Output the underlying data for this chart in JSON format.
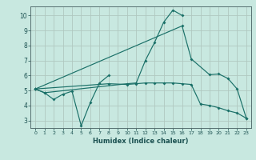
{
  "xlabel": "Humidex (Indice chaleur)",
  "bg_color": "#c8e8e0",
  "grid_color": "#b0c8c0",
  "line_color": "#1a7068",
  "xlim": [
    -0.5,
    23.5
  ],
  "ylim": [
    2.5,
    10.6
  ],
  "yticks": [
    3,
    4,
    5,
    6,
    7,
    8,
    9,
    10
  ],
  "xticks": [
    0,
    1,
    2,
    3,
    4,
    5,
    6,
    7,
    8,
    9,
    10,
    11,
    12,
    13,
    14,
    15,
    16,
    17,
    18,
    19,
    20,
    21,
    22,
    23
  ],
  "series": [
    {
      "x": [
        0,
        1,
        2,
        3,
        4,
        5,
        6,
        7,
        8
      ],
      "y": [
        5.1,
        4.85,
        4.4,
        4.75,
        4.95,
        2.65,
        4.2,
        5.5,
        6.0
      ]
    },
    {
      "x": [
        0,
        1,
        10,
        11,
        12,
        13,
        14,
        15,
        16
      ],
      "y": [
        5.1,
        4.85,
        5.45,
        5.5,
        7.0,
        8.2,
        9.55,
        10.35,
        10.0
      ]
    },
    {
      "x": [
        0,
        16,
        17,
        19,
        20,
        21,
        22,
        23
      ],
      "y": [
        5.1,
        9.3,
        7.1,
        6.05,
        6.1,
        5.8,
        5.1,
        3.15
      ]
    },
    {
      "x": [
        0,
        8,
        10,
        11,
        12,
        13,
        14,
        15,
        16,
        17,
        18,
        19,
        20,
        21,
        22,
        23
      ],
      "y": [
        5.1,
        5.45,
        5.4,
        5.45,
        5.5,
        5.5,
        5.5,
        5.5,
        5.45,
        5.4,
        4.1,
        4.0,
        3.85,
        3.65,
        3.5,
        3.15
      ]
    }
  ]
}
